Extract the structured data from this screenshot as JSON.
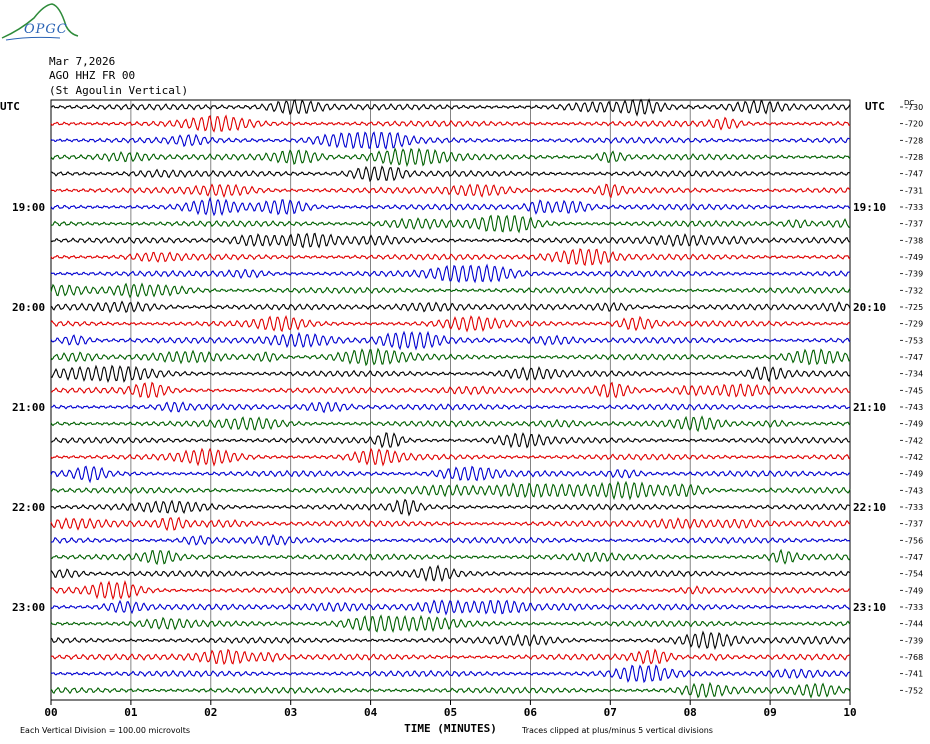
{
  "logo": {
    "text": "OPGC"
  },
  "header": {
    "date": "Mar 7,2026",
    "station": "AGO HHZ FR 00",
    "location": "(St Agoulin Vertical)"
  },
  "chart_data": {
    "type": "line",
    "title": "AGO HHZ FR 00",
    "left_axis_label": "UTC",
    "right_axis_label": "UTC",
    "dc_label": "DC",
    "xlabel": "TIME (MINUTES)",
    "x_ticks": [
      "00",
      "01",
      "02",
      "03",
      "04",
      "05",
      "06",
      "07",
      "08",
      "09",
      "10"
    ],
    "xlim": [
      0,
      10
    ],
    "left_hour_labels": [
      {
        "row": 6,
        "label": "19:00"
      },
      {
        "row": 12,
        "label": "20:00"
      },
      {
        "row": 18,
        "label": "21:00"
      },
      {
        "row": 24,
        "label": "22:00"
      },
      {
        "row": 30,
        "label": "23:00"
      }
    ],
    "right_hour_labels": [
      {
        "row": 6,
        "label": "19:10"
      },
      {
        "row": 12,
        "label": "20:10"
      },
      {
        "row": 18,
        "label": "21:10"
      },
      {
        "row": 24,
        "label": "22:10"
      },
      {
        "row": 30,
        "label": "23:10"
      }
    ],
    "trace_colors": [
      "#000000",
      "#e00000",
      "#0000d0",
      "#006000"
    ],
    "dc_offsets": [
      -730,
      -720,
      -728,
      -728,
      -747,
      -731,
      -733,
      -737,
      -738,
      -749,
      -739,
      -732,
      -725,
      -729,
      -753,
      -747,
      -734,
      -745,
      -743,
      -749,
      -742,
      -742,
      -749,
      -743,
      -733,
      -737,
      -756,
      -747,
      -754,
      -749,
      -733,
      -744,
      -739,
      -768,
      -741,
      -752
    ],
    "grid": true,
    "grid_color": "#666666",
    "footer_left": "Each Vertical Division =  100.00 microvolts",
    "footer_right": "Traces clipped at plus/minus 5 vertical divisions"
  }
}
